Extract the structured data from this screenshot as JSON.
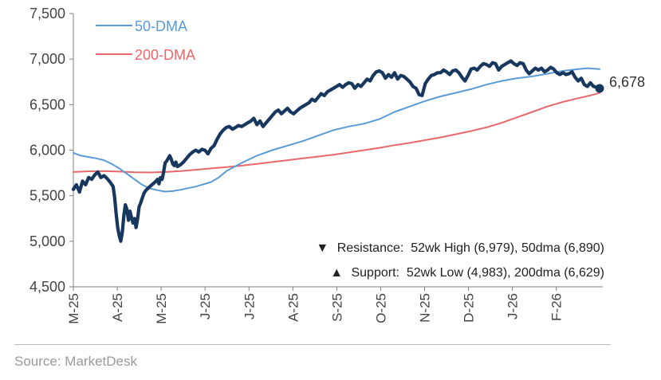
{
  "chart_data": {
    "type": "line",
    "title": "",
    "xlabel": "",
    "ylabel": "",
    "ylim": [
      4500,
      7500
    ],
    "y_ticks": [
      "4,500",
      "5,000",
      "5,500",
      "6,000",
      "6,500",
      "7,000",
      "7,500"
    ],
    "x_ticks": [
      "M-25",
      "A-25",
      "M-25",
      "J-25",
      "J-25",
      "A-25",
      "S-25",
      "O-25",
      "N-25",
      "D-25",
      "J-26",
      "F-26"
    ],
    "grid": false,
    "legend_position": "top-left",
    "series": [
      {
        "name": "",
        "role": "price",
        "color": "#17375e",
        "points": [
          [
            0,
            5570
          ],
          [
            2,
            5620
          ],
          [
            4,
            5540
          ],
          [
            6,
            5660
          ],
          [
            8,
            5620
          ],
          [
            10,
            5700
          ],
          [
            12,
            5680
          ],
          [
            14,
            5730
          ],
          [
            16,
            5760
          ],
          [
            18,
            5700
          ],
          [
            20,
            5720
          ],
          [
            22,
            5690
          ],
          [
            24,
            5650
          ],
          [
            26,
            5600
          ],
          [
            27,
            5480
          ],
          [
            28,
            5300
          ],
          [
            29,
            5150
          ],
          [
            30,
            5060
          ],
          [
            31,
            5000
          ],
          [
            32,
            5100
          ],
          [
            33,
            5280
          ],
          [
            34,
            5400
          ],
          [
            35,
            5350
          ],
          [
            36,
            5230
          ],
          [
            37,
            5330
          ],
          [
            38,
            5260
          ],
          [
            39,
            5200
          ],
          [
            40,
            5250
          ],
          [
            41,
            5150
          ],
          [
            42,
            5250
          ],
          [
            43,
            5380
          ],
          [
            44,
            5420
          ],
          [
            45,
            5470
          ],
          [
            46,
            5520
          ],
          [
            47,
            5550
          ],
          [
            48,
            5570
          ],
          [
            50,
            5600
          ],
          [
            52,
            5630
          ],
          [
            54,
            5660
          ],
          [
            55,
            5680
          ],
          [
            56,
            5630
          ],
          [
            57,
            5700
          ],
          [
            58,
            5680
          ],
          [
            59,
            5760
          ],
          [
            60,
            5860
          ],
          [
            61,
            5880
          ],
          [
            62,
            5910
          ],
          [
            63,
            5940
          ],
          [
            64,
            5900
          ],
          [
            65,
            5850
          ],
          [
            66,
            5830
          ],
          [
            67,
            5870
          ],
          [
            68,
            5820
          ],
          [
            70,
            5840
          ],
          [
            72,
            5870
          ],
          [
            74,
            5910
          ],
          [
            76,
            5950
          ],
          [
            78,
            5980
          ],
          [
            80,
            6000
          ],
          [
            82,
            5980
          ],
          [
            84,
            6010
          ],
          [
            86,
            6000
          ],
          [
            88,
            5960
          ],
          [
            90,
            6020
          ],
          [
            92,
            6050
          ],
          [
            94,
            6120
          ],
          [
            96,
            6180
          ],
          [
            98,
            6220
          ],
          [
            100,
            6250
          ],
          [
            102,
            6260
          ],
          [
            104,
            6230
          ],
          [
            106,
            6250
          ],
          [
            108,
            6270
          ],
          [
            110,
            6260
          ],
          [
            112,
            6280
          ],
          [
            114,
            6300
          ],
          [
            116,
            6320
          ],
          [
            118,
            6350
          ],
          [
            120,
            6280
          ],
          [
            122,
            6320
          ],
          [
            124,
            6260
          ],
          [
            126,
            6300
          ],
          [
            128,
            6340
          ],
          [
            130,
            6380
          ],
          [
            132,
            6420
          ],
          [
            134,
            6440
          ],
          [
            136,
            6400
          ],
          [
            138,
            6430
          ],
          [
            140,
            6460
          ],
          [
            142,
            6420
          ],
          [
            144,
            6400
          ],
          [
            146,
            6430
          ],
          [
            148,
            6460
          ],
          [
            150,
            6480
          ],
          [
            152,
            6500
          ],
          [
            154,
            6520
          ],
          [
            156,
            6560
          ],
          [
            158,
            6540
          ],
          [
            160,
            6580
          ],
          [
            162,
            6620
          ],
          [
            164,
            6600
          ],
          [
            166,
            6640
          ],
          [
            168,
            6660
          ],
          [
            170,
            6680
          ],
          [
            172,
            6700
          ],
          [
            174,
            6720
          ],
          [
            176,
            6690
          ],
          [
            178,
            6720
          ],
          [
            180,
            6740
          ],
          [
            182,
            6730
          ],
          [
            184,
            6680
          ],
          [
            186,
            6720
          ],
          [
            188,
            6700
          ],
          [
            190,
            6740
          ],
          [
            192,
            6780
          ],
          [
            194,
            6760
          ],
          [
            196,
            6820
          ],
          [
            198,
            6860
          ],
          [
            200,
            6870
          ],
          [
            202,
            6850
          ],
          [
            204,
            6790
          ],
          [
            206,
            6830
          ],
          [
            208,
            6800
          ],
          [
            210,
            6850
          ],
          [
            212,
            6780
          ],
          [
            214,
            6820
          ],
          [
            216,
            6810
          ],
          [
            218,
            6780
          ],
          [
            220,
            6750
          ],
          [
            222,
            6700
          ],
          [
            224,
            6680
          ],
          [
            226,
            6610
          ],
          [
            228,
            6600
          ],
          [
            230,
            6730
          ],
          [
            232,
            6780
          ],
          [
            234,
            6820
          ],
          [
            236,
            6830
          ],
          [
            238,
            6850
          ],
          [
            240,
            6850
          ],
          [
            242,
            6880
          ],
          [
            244,
            6860
          ],
          [
            246,
            6830
          ],
          [
            248,
            6870
          ],
          [
            250,
            6880
          ],
          [
            252,
            6850
          ],
          [
            254,
            6800
          ],
          [
            256,
            6760
          ],
          [
            258,
            6820
          ],
          [
            260,
            6890
          ],
          [
            262,
            6900
          ],
          [
            264,
            6880
          ],
          [
            266,
            6920
          ],
          [
            268,
            6950
          ],
          [
            270,
            6940
          ],
          [
            272,
            6920
          ],
          [
            274,
            6960
          ],
          [
            276,
            6950
          ],
          [
            278,
            6880
          ],
          [
            280,
            6920
          ],
          [
            282,
            6940
          ],
          [
            284,
            6960
          ],
          [
            286,
            6980
          ],
          [
            288,
            6950
          ],
          [
            290,
            6930
          ],
          [
            292,
            6960
          ],
          [
            294,
            6950
          ],
          [
            296,
            6880
          ],
          [
            298,
            6840
          ],
          [
            300,
            6870
          ],
          [
            302,
            6900
          ],
          [
            304,
            6880
          ],
          [
            306,
            6900
          ],
          [
            308,
            6860
          ],
          [
            310,
            6880
          ],
          [
            312,
            6910
          ],
          [
            314,
            6890
          ],
          [
            316,
            6850
          ],
          [
            318,
            6830
          ],
          [
            320,
            6850
          ],
          [
            322,
            6830
          ],
          [
            324,
            6840
          ],
          [
            326,
            6860
          ],
          [
            328,
            6800
          ],
          [
            330,
            6760
          ],
          [
            332,
            6790
          ],
          [
            334,
            6720
          ],
          [
            336,
            6700
          ],
          [
            338,
            6740
          ],
          [
            340,
            6700
          ],
          [
            342,
            6690
          ],
          [
            344,
            6678
          ]
        ]
      },
      {
        "name": "50-DMA",
        "role": "ma50",
        "color": "#5b9bd5",
        "points": [
          [
            0,
            5970
          ],
          [
            5,
            5940
          ],
          [
            10,
            5925
          ],
          [
            15,
            5910
          ],
          [
            20,
            5890
          ],
          [
            25,
            5850
          ],
          [
            30,
            5800
          ],
          [
            35,
            5740
          ],
          [
            40,
            5680
          ],
          [
            45,
            5620
          ],
          [
            50,
            5580
          ],
          [
            55,
            5560
          ],
          [
            60,
            5545
          ],
          [
            65,
            5550
          ],
          [
            70,
            5565
          ],
          [
            80,
            5600
          ],
          [
            90,
            5650
          ],
          [
            95,
            5700
          ],
          [
            100,
            5770
          ],
          [
            110,
            5860
          ],
          [
            120,
            5940
          ],
          [
            130,
            6000
          ],
          [
            140,
            6050
          ],
          [
            150,
            6100
          ],
          [
            160,
            6160
          ],
          [
            170,
            6220
          ],
          [
            180,
            6260
          ],
          [
            190,
            6290
          ],
          [
            200,
            6340
          ],
          [
            210,
            6420
          ],
          [
            220,
            6480
          ],
          [
            230,
            6540
          ],
          [
            240,
            6590
          ],
          [
            250,
            6630
          ],
          [
            260,
            6670
          ],
          [
            270,
            6720
          ],
          [
            280,
            6760
          ],
          [
            290,
            6790
          ],
          [
            300,
            6810
          ],
          [
            310,
            6840
          ],
          [
            320,
            6870
          ],
          [
            330,
            6890
          ],
          [
            336,
            6900
          ],
          [
            344,
            6890
          ]
        ]
      },
      {
        "name": "200-DMA",
        "role": "ma200",
        "color": "#e8686c",
        "points": [
          [
            0,
            5760
          ],
          [
            10,
            5768
          ],
          [
            20,
            5770
          ],
          [
            30,
            5765
          ],
          [
            40,
            5758
          ],
          [
            50,
            5755
          ],
          [
            60,
            5760
          ],
          [
            70,
            5770
          ],
          [
            80,
            5785
          ],
          [
            90,
            5800
          ],
          [
            100,
            5815
          ],
          [
            110,
            5830
          ],
          [
            120,
            5850
          ],
          [
            130,
            5870
          ],
          [
            140,
            5890
          ],
          [
            150,
            5910
          ],
          [
            160,
            5930
          ],
          [
            170,
            5950
          ],
          [
            180,
            5975
          ],
          [
            190,
            6000
          ],
          [
            200,
            6025
          ],
          [
            210,
            6055
          ],
          [
            220,
            6080
          ],
          [
            230,
            6110
          ],
          [
            240,
            6140
          ],
          [
            250,
            6175
          ],
          [
            260,
            6210
          ],
          [
            270,
            6250
          ],
          [
            280,
            6300
          ],
          [
            290,
            6360
          ],
          [
            300,
            6420
          ],
          [
            310,
            6480
          ],
          [
            320,
            6530
          ],
          [
            330,
            6570
          ],
          [
            340,
            6610
          ],
          [
            344,
            6629
          ]
        ]
      }
    ],
    "last_value_label": "6,678",
    "annotations": [
      {
        "marker": "▼",
        "text": "Resistance:  52wk High (6,979), 50dma (6,890)"
      },
      {
        "marker": "▲",
        "text": "Support:  52wk Low (4,983), 200dma (6,629)"
      }
    ]
  },
  "footer": {
    "source": "Source: MarketDesk"
  }
}
